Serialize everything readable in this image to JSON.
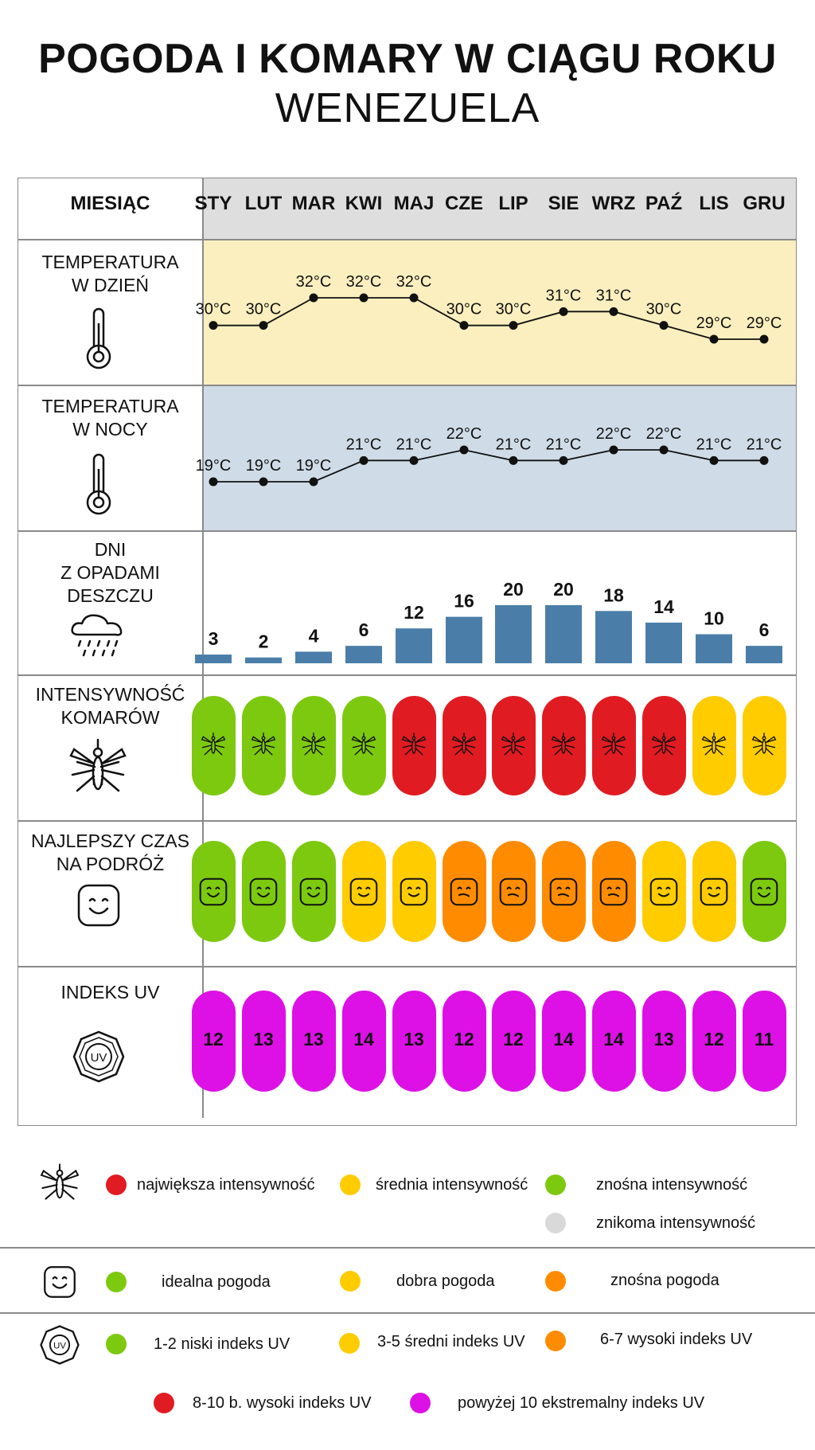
{
  "title": "POGODA I KOMARY W CIĄGU ROKU",
  "subtitle": "WENEZUELA",
  "header_label": "MIESIĄC",
  "months": [
    "STY",
    "LUT",
    "MAR",
    "KWI",
    "MAJ",
    "CZE",
    "LIP",
    "SIE",
    "WRZ",
    "PAŹ",
    "LIS",
    "GRU"
  ],
  "rows": {
    "day_temp": {
      "label_1": "TEMPERATURA",
      "label_2": "W DZIEŃ",
      "icon": "thermometer-icon"
    },
    "night_temp": {
      "label_1": "TEMPERATURA",
      "label_2": "W NOCY",
      "icon": "thermometer-icon"
    },
    "rain": {
      "label_1": "DNI",
      "label_2": "Z OPADAMI",
      "label_3": "DESZCZU",
      "icon": "rain-cloud-icon"
    },
    "mosquito": {
      "label_1": "INTENSYWNOŚĆ",
      "label_2": "KOMARÓW",
      "icon": "mosquito-icon"
    },
    "travel": {
      "label_1": "NAJLEPSZY CZAS",
      "label_2": "NA PODRÓŻ",
      "icon": "smiley-icon"
    },
    "uv": {
      "label_1": "INDEKS UV",
      "icon": "uv-sun-icon"
    }
  },
  "chart_data": [
    {
      "type": "line",
      "name": "day_temperature",
      "categories": [
        "STY",
        "LUT",
        "MAR",
        "KWI",
        "MAJ",
        "CZE",
        "LIP",
        "SIE",
        "WRZ",
        "PAŹ",
        "LIS",
        "GRU"
      ],
      "values": [
        30,
        30,
        32,
        32,
        32,
        30,
        30,
        31,
        31,
        30,
        29,
        29
      ],
      "value_labels": [
        "30°C",
        "30°C",
        "32°C",
        "32°C",
        "32°C",
        "30°C",
        "30°C",
        "31°C",
        "31°C",
        "30°C",
        "29°C",
        "29°C"
      ],
      "unit": "°C"
    },
    {
      "type": "line",
      "name": "night_temperature",
      "categories": [
        "STY",
        "LUT",
        "MAR",
        "KWI",
        "MAJ",
        "CZE",
        "LIP",
        "SIE",
        "WRZ",
        "PAŹ",
        "LIS",
        "GRU"
      ],
      "values": [
        19,
        19,
        19,
        21,
        21,
        22,
        21,
        21,
        22,
        22,
        21,
        21
      ],
      "value_labels": [
        "19°C",
        "19°C",
        "19°C",
        "21°C",
        "21°C",
        "22°C",
        "21°C",
        "21°C",
        "22°C",
        "22°C",
        "21°C",
        "21°C"
      ],
      "unit": "°C"
    },
    {
      "type": "bar",
      "name": "rain_days",
      "categories": [
        "STY",
        "LUT",
        "MAR",
        "KWI",
        "MAJ",
        "CZE",
        "LIP",
        "SIE",
        "WRZ",
        "PAŹ",
        "LIS",
        "GRU"
      ],
      "values": [
        3,
        2,
        4,
        6,
        12,
        16,
        20,
        20,
        18,
        14,
        10,
        6
      ]
    }
  ],
  "mosquito_levels": [
    "green",
    "green",
    "green",
    "green",
    "red",
    "red",
    "red",
    "red",
    "red",
    "red",
    "yellow",
    "yellow"
  ],
  "travel_levels": [
    "green",
    "green",
    "green",
    "yellow",
    "yellow",
    "orange",
    "orange",
    "orange",
    "orange",
    "yellow",
    "yellow",
    "green"
  ],
  "uv_values": [
    "12",
    "13",
    "13",
    "14",
    "13",
    "12",
    "12",
    "14",
    "14",
    "13",
    "12",
    "11"
  ],
  "colors": {
    "green": "#7dc90f",
    "yellow": "#ffcc00",
    "orange": "#ff8c00",
    "red": "#e11b22",
    "magenta": "#dd10e6",
    "grey": "#d9d9d9",
    "day_band": "#fbefbf",
    "night_band": "#cfdce7",
    "header_band": "#dedede",
    "bar": "#4a7ea8"
  },
  "legend": {
    "mosquito": [
      {
        "color": "red",
        "label": "największa intensywność"
      },
      {
        "color": "yellow",
        "label": "średnia intensywność"
      },
      {
        "color": "green",
        "label": "znośna intensywność"
      },
      {
        "color": "grey",
        "label": "znikoma intensywność"
      }
    ],
    "weather": [
      {
        "color": "green",
        "label": "idealna pogoda"
      },
      {
        "color": "yellow",
        "label": "dobra pogoda"
      },
      {
        "color": "orange",
        "label": "znośna pogoda"
      }
    ],
    "uv": [
      {
        "color": "green",
        "label": "1-2 niski indeks UV"
      },
      {
        "color": "yellow",
        "label": "3-5 średni indeks UV"
      },
      {
        "color": "orange",
        "label": "6-7 wysoki indeks UV"
      },
      {
        "color": "red",
        "label": "8-10 b. wysoki indeks UV"
      },
      {
        "color": "magenta",
        "label": "powyżej 10 ekstremalny indeks UV"
      }
    ]
  }
}
